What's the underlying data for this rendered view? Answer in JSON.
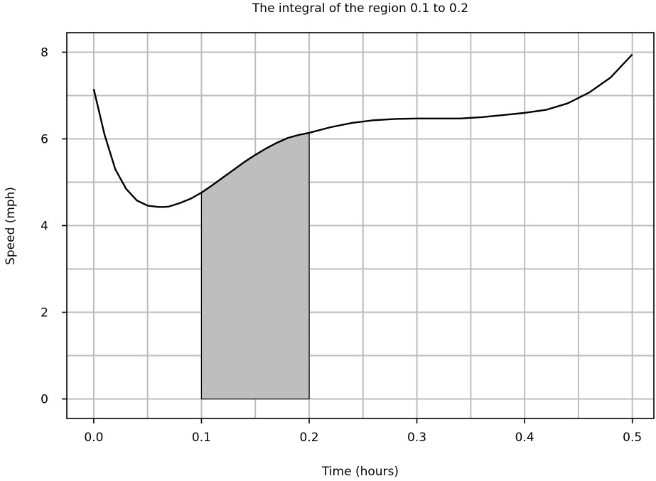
{
  "chart_data": {
    "type": "area",
    "title": "The integral of the region 0.1 to 0.2",
    "xlabel": "Time (hours)",
    "ylabel": "Speed (mph)",
    "xlim": [
      -0.025,
      0.52
    ],
    "ylim": [
      -0.45,
      8.45
    ],
    "xticks": [
      0.0,
      0.1,
      0.2,
      0.3,
      0.4,
      0.5
    ],
    "xtick_labels": [
      "0.0",
      "0.1",
      "0.2",
      "0.3",
      "0.4",
      "0.5"
    ],
    "yticks": [
      0,
      2,
      4,
      6,
      8
    ],
    "ytick_labels": [
      "0",
      "2",
      "4",
      "6",
      "8"
    ],
    "xgrid_minor": [
      0.05,
      0.15,
      0.25,
      0.35,
      0.45
    ],
    "ygrid_minor": [
      1,
      3,
      5,
      7
    ],
    "grid": true,
    "series": [
      {
        "x": [
          0.0,
          0.01,
          0.02,
          0.03,
          0.04,
          0.05,
          0.06,
          0.065,
          0.07,
          0.08,
          0.09,
          0.1,
          0.11,
          0.12,
          0.13,
          0.14,
          0.15,
          0.16,
          0.17,
          0.18,
          0.19,
          0.2,
          0.22,
          0.24,
          0.26,
          0.28,
          0.3,
          0.32,
          0.34,
          0.36,
          0.38,
          0.4,
          0.42,
          0.44,
          0.46,
          0.48,
          0.5
        ],
        "y": [
          7.15,
          6.1,
          5.3,
          4.85,
          4.58,
          4.46,
          4.43,
          4.43,
          4.44,
          4.52,
          4.62,
          4.76,
          4.93,
          5.11,
          5.29,
          5.47,
          5.63,
          5.78,
          5.91,
          6.02,
          6.09,
          6.14,
          6.27,
          6.37,
          6.43,
          6.46,
          6.47,
          6.47,
          6.47,
          6.5,
          6.55,
          6.6,
          6.67,
          6.82,
          7.07,
          7.42,
          7.95
        ]
      }
    ],
    "shaded_region": {
      "x_start": 0.1,
      "x_end": 0.2
    }
  }
}
